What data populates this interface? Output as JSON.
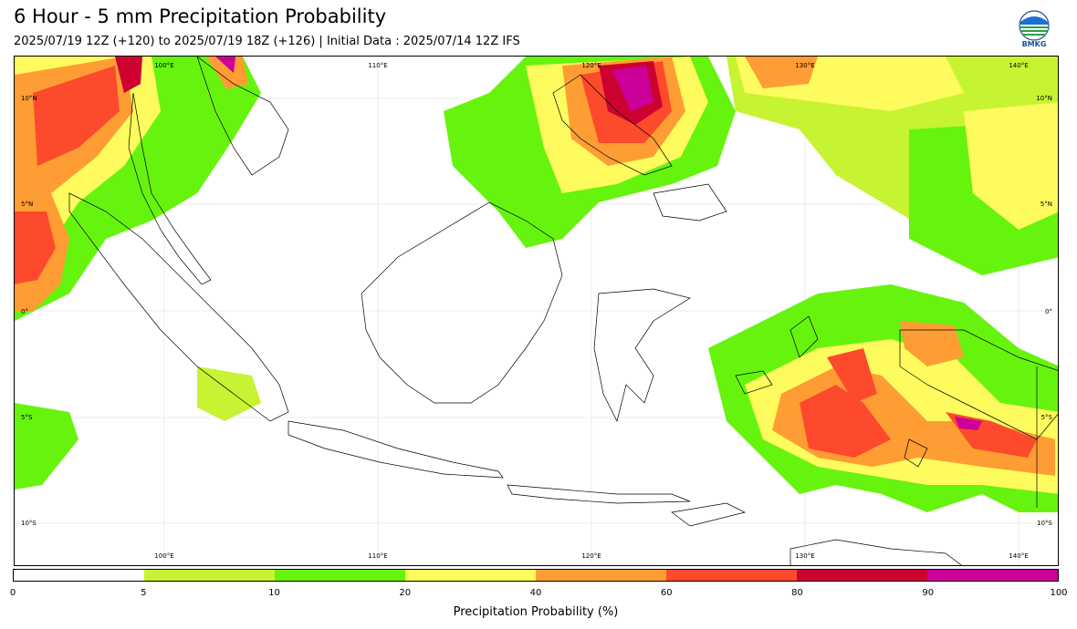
{
  "header": {
    "title": "6 Hour - 5 mm Precipitation Probability",
    "subtitle": "2025/07/19 12Z (+120) to 2025/07/19 18Z (+126) | Initial Data : 2025/07/14 12Z IFS",
    "logo_text": "BMKG"
  },
  "map": {
    "lon_labels_top": [
      "100°E",
      "110°E",
      "120°E",
      "130°E",
      "140°E"
    ],
    "lon_labels_bottom": [
      "100°E",
      "110°E",
      "120°E",
      "130°E",
      "140°E"
    ],
    "lat_labels_left": [
      "10°N",
      "5°N",
      "0°",
      "5°S",
      "10°S"
    ],
    "lat_labels_right": [
      "10°N",
      "5°N",
      "0°",
      "5°S",
      "10°S"
    ]
  },
  "colorbar": {
    "title": "Precipitation Probability (%)",
    "ticks": [
      "0",
      "5",
      "10",
      "20",
      "40",
      "60",
      "80",
      "90",
      "100"
    ],
    "colors": [
      "#ffffff",
      "#c6f432",
      "#66f40e",
      "#fdfb5d",
      "#fe9d33",
      "#fd4a2c",
      "#ce0231",
      "#cc0099"
    ]
  }
}
